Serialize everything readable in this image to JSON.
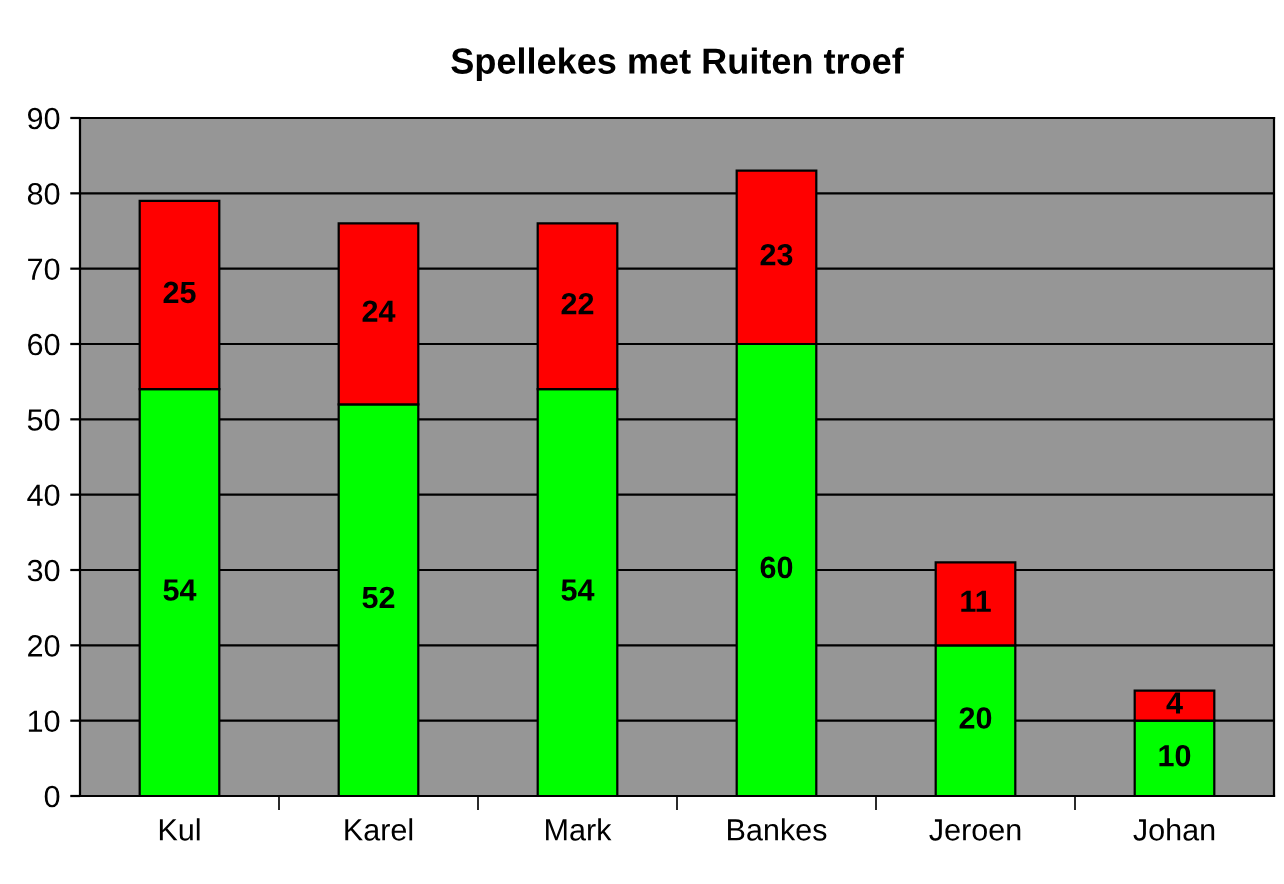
{
  "chart_data": {
    "type": "bar",
    "title": "Spellekes met Ruiten troef",
    "categories": [
      "Kul",
      "Karel",
      "Mark",
      "Bankes",
      "Jeroen",
      "Johan"
    ],
    "series": [
      {
        "color": "#00ff00",
        "values": [
          54,
          52,
          54,
          60,
          20,
          10
        ]
      },
      {
        "color": "#ff0000",
        "values": [
          25,
          24,
          22,
          23,
          11,
          4
        ]
      }
    ],
    "stacked": true,
    "data_labels": true,
    "ylim": [
      0,
      90
    ],
    "yticks": [
      0,
      10,
      20,
      30,
      40,
      50,
      60,
      70,
      80,
      90
    ],
    "grid": "y",
    "legend": false
  }
}
